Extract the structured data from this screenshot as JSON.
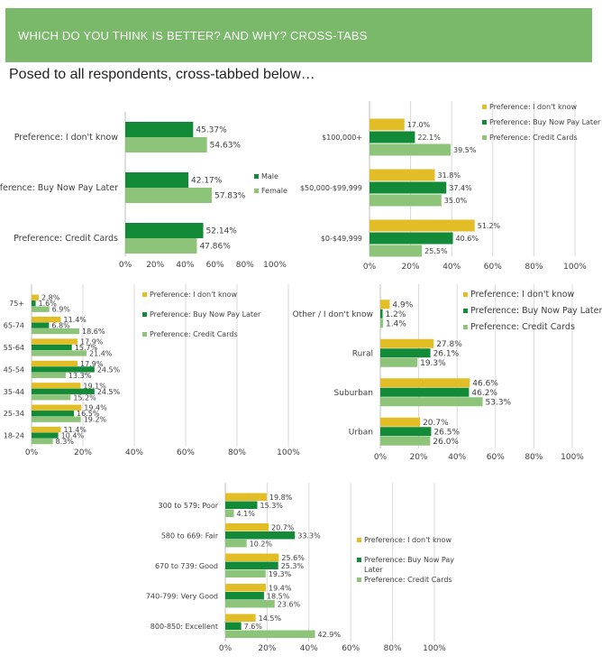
{
  "header": {
    "title": "WHICH DO YOU THINK IS BETTER? AND WHY? CROSS-TABS"
  },
  "subtitle": "Posed to all respondents, cross-tabbed below…",
  "colors": {
    "banner": "#7ab86a",
    "yellow": "#e2bd26",
    "dark_green": "#128a37",
    "light_green": "#8dc479",
    "grid": "#d9d9d9"
  },
  "chart_data": [
    {
      "id": "gender",
      "type": "bar",
      "orientation": "horizontal",
      "categories": [
        "Preference: I don't know",
        "Preference: Buy Now Pay Later",
        "Preference: Credit Cards"
      ],
      "series": [
        {
          "name": "Male",
          "values": [
            45.37,
            42.17,
            52.14
          ],
          "labels": [
            "45.37%",
            "42.17%",
            "52.14%"
          ],
          "color": "#128a37"
        },
        {
          "name": "Female",
          "values": [
            54.63,
            57.83,
            47.86
          ],
          "labels": [
            "54.63%",
            "57.83%",
            "47.86%"
          ],
          "color": "#8dc479"
        }
      ],
      "ticks": [
        "0%",
        "20%",
        "40%",
        "60%",
        "80%",
        "100%"
      ],
      "xlim": [
        0,
        100
      ],
      "grid": false,
      "legend": "right"
    },
    {
      "id": "income",
      "type": "bar",
      "orientation": "horizontal",
      "categories": [
        "$100,000+",
        "$50,000-$99,999",
        "$0-$49,999"
      ],
      "series": [
        {
          "name": "Preference: I don't know",
          "values": [
            17.0,
            31.8,
            51.2
          ],
          "labels": [
            "17.0%",
            "31.8%",
            "51.2%"
          ],
          "color": "#e2bd26"
        },
        {
          "name": "Preference: Buy Now Pay Later",
          "values": [
            22.1,
            37.4,
            40.6
          ],
          "labels": [
            "22.1%",
            "37.4%",
            "40.6%"
          ],
          "color": "#128a37"
        },
        {
          "name": "Preference: Credit Cards",
          "values": [
            39.5,
            35.0,
            25.5
          ],
          "labels": [
            "39.5%",
            "35.0%",
            "25.5%"
          ],
          "color": "#8dc479"
        }
      ],
      "ticks": [
        "0%",
        "20%",
        "40%",
        "60%",
        "80%",
        "100%"
      ],
      "xlim": [
        0,
        100
      ],
      "grid": true,
      "legend": "top-right"
    },
    {
      "id": "age",
      "type": "bar",
      "orientation": "horizontal",
      "categories": [
        "75+",
        "65-74",
        "55-64",
        "45-54",
        "35-44",
        "25-34",
        "18-24"
      ],
      "series": [
        {
          "name": "Preference: I don't know",
          "values": [
            2.8,
            11.4,
            17.9,
            17.9,
            19.1,
            19.4,
            11.4
          ],
          "labels": [
            "2.8%",
            "11.4%",
            "17.9%",
            "17.9%",
            "19.1%",
            "19.4%",
            "11.4%"
          ],
          "color": "#e2bd26"
        },
        {
          "name": "Preference: Buy Now Pay Later",
          "values": [
            1.6,
            6.8,
            15.7,
            24.5,
            24.5,
            16.5,
            10.4
          ],
          "labels": [
            "1.6%",
            "6.8%",
            "15.7%",
            "24.5%",
            "24.5%",
            "16.5%",
            "10.4%"
          ],
          "color": "#128a37"
        },
        {
          "name": "Preference: Credit Cards",
          "values": [
            6.9,
            18.6,
            21.4,
            13.3,
            15.2,
            19.2,
            8.3
          ],
          "labels": [
            "6.9%",
            "18.6%",
            "21.4%",
            "13.3%",
            "15.2%",
            "19.2%",
            "8.3%"
          ],
          "color": "#8dc479"
        }
      ],
      "ticks": [
        "0%",
        "20%",
        "40%",
        "60%",
        "80%",
        "100%"
      ],
      "xlim": [
        0,
        100
      ],
      "grid": true,
      "legend": "top-right"
    },
    {
      "id": "location",
      "type": "bar",
      "orientation": "horizontal",
      "categories": [
        "Other / I don't know",
        "Rural",
        "Suburban",
        "Urban"
      ],
      "series": [
        {
          "name": "Preference: I don't know",
          "values": [
            4.9,
            27.8,
            46.6,
            20.7
          ],
          "labels": [
            "4.9%",
            "27.8%",
            "46.6%",
            "20.7%"
          ],
          "color": "#e2bd26"
        },
        {
          "name": "Preference: Buy Now Pay Later",
          "values": [
            1.2,
            26.1,
            46.2,
            26.5
          ],
          "labels": [
            "1.2%",
            "26.1%",
            "46.2%",
            "26.5%"
          ],
          "color": "#128a37"
        },
        {
          "name": "Preference: Credit Cards",
          "values": [
            1.4,
            19.3,
            53.3,
            26.0
          ],
          "labels": [
            "1.4%",
            "19.3%",
            "53.3%",
            "26.0%"
          ],
          "color": "#8dc479"
        }
      ],
      "ticks": [
        "0%",
        "20%",
        "40%",
        "60%",
        "80%",
        "100%"
      ],
      "xlim": [
        0,
        100
      ],
      "grid": true,
      "legend": "top-right"
    },
    {
      "id": "credit",
      "type": "bar",
      "orientation": "horizontal",
      "categories": [
        "300 to 579: Poor",
        "580 to 669: Fair",
        "670 to 739: Good",
        "740-799: Very Good",
        "800-850: Excellent"
      ],
      "series": [
        {
          "name": "Preference: I don't know",
          "values": [
            19.8,
            20.7,
            25.6,
            19.4,
            14.5
          ],
          "labels": [
            "19.8%",
            "20.7%",
            "25.6%",
            "19.4%",
            "14.5%"
          ],
          "color": "#e2bd26"
        },
        {
          "name": "Preference: Buy Now Pay Later",
          "values": [
            15.3,
            33.3,
            25.3,
            18.5,
            7.6
          ],
          "labels": [
            "15.3%",
            "33.3%",
            "25.3%",
            "18.5%",
            "7.6%"
          ],
          "color": "#128a37"
        },
        {
          "name": "Preference: Credit Cards",
          "values": [
            4.1,
            10.2,
            19.3,
            23.6,
            42.9
          ],
          "labels": [
            "4.1%",
            "10.2%",
            "19.3%",
            "23.6%",
            "42.9%"
          ],
          "color": "#8dc479"
        }
      ],
      "ticks": [
        "0%",
        "20%",
        "40%",
        "60%",
        "80%",
        "100%"
      ],
      "xlim": [
        0,
        100
      ],
      "grid": true,
      "legend": "right"
    }
  ]
}
